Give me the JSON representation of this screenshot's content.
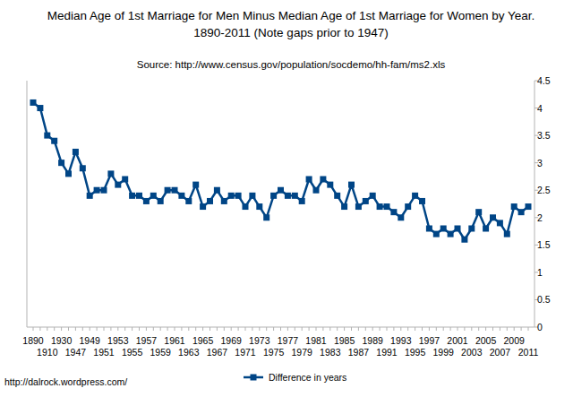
{
  "chart_data": {
    "type": "line",
    "title": "Median Age of 1st Marriage for Men Minus Median Age of 1st Marriage for Women by Year.",
    "subtitle": "1890-2011 (Note gaps prior to 1947)",
    "annotations": [
      "Source:  http://www.census.gov/population/socdemo/hh-fam/ms2.xls",
      "http://dalrock.wordpress.com/"
    ],
    "categories": [
      "1890",
      null,
      "1910",
      null,
      "1930",
      null,
      "1947",
      null,
      "1949",
      null,
      "1951",
      null,
      "1953",
      null,
      "1955",
      null,
      "1957",
      null,
      "1959",
      null,
      "1961",
      null,
      "1963",
      null,
      "1965",
      null,
      "1967",
      null,
      "1969",
      null,
      "1971",
      null,
      "1973",
      null,
      "1975",
      null,
      "1977",
      null,
      "1979",
      null,
      "1981",
      null,
      "1983",
      null,
      "1985",
      null,
      "1987",
      null,
      "1989",
      null,
      "1991",
      null,
      "1993",
      null,
      "1995",
      null,
      "1997",
      null,
      "1999",
      null,
      "2001",
      null,
      "2003",
      null,
      "2005",
      null,
      "2007",
      null,
      "2009",
      null,
      "2011"
    ],
    "series": [
      {
        "name": "Difference in years",
        "color": "#004586",
        "marker": "square",
        "values": [
          4.1,
          4.0,
          3.5,
          3.4,
          3.0,
          2.8,
          3.2,
          2.9,
          2.4,
          2.5,
          2.5,
          2.8,
          2.6,
          2.7,
          2.4,
          2.4,
          2.3,
          2.4,
          2.3,
          2.5,
          2.5,
          2.4,
          2.3,
          2.6,
          2.2,
          2.3,
          2.5,
          2.3,
          2.4,
          2.4,
          2.2,
          2.4,
          2.2,
          2.0,
          2.4,
          2.5,
          2.4,
          2.4,
          2.3,
          2.7,
          2.5,
          2.7,
          2.6,
          2.4,
          2.2,
          2.6,
          2.2,
          2.3,
          2.4,
          2.2,
          2.2,
          2.1,
          2.0,
          2.2,
          2.4,
          2.3,
          1.8,
          1.7,
          1.8,
          1.7,
          1.8,
          1.6,
          1.8,
          2.1,
          1.8,
          2.0,
          1.9,
          1.7,
          2.2,
          2.1,
          2.2
        ]
      }
    ],
    "ylim": [
      0,
      4.5
    ],
    "yticks": [
      0,
      0.5,
      1,
      1.5,
      2,
      2.5,
      3,
      3.5,
      4,
      4.5
    ],
    "grid": false,
    "legend": "bottom"
  }
}
